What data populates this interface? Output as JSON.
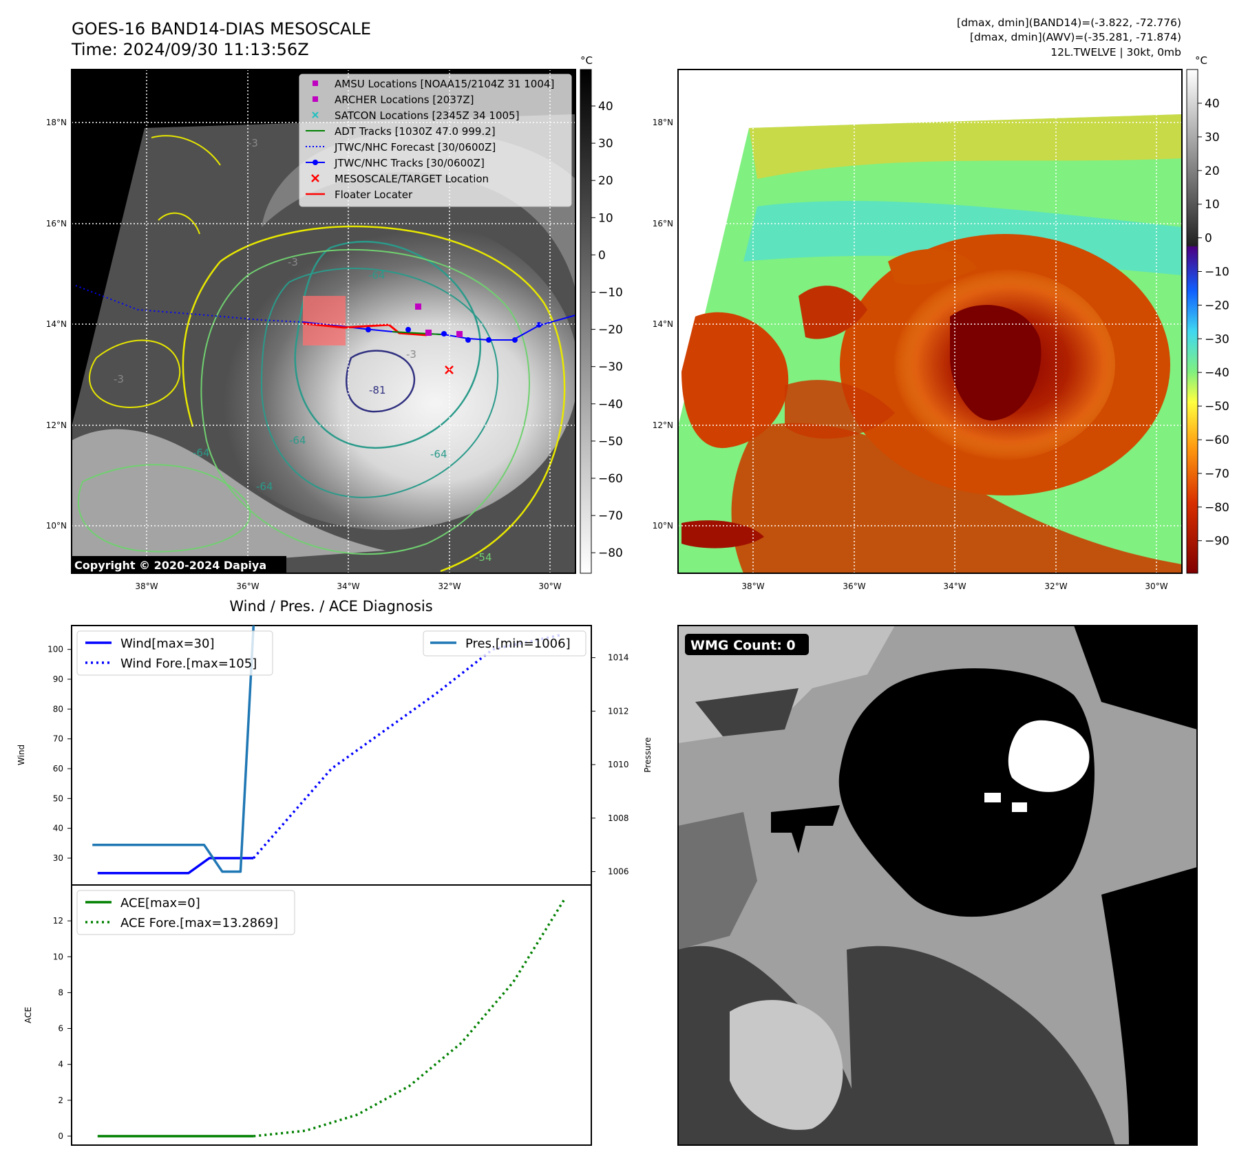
{
  "header": {
    "title": "GOES-16 BAND14-DIAS MESOSCALE",
    "time": "Time: 2024/09/30 11:13:56Z",
    "stats_line1": "[dmax, dmin](BAND14)=(-3.822, -72.776)",
    "stats_line2": "[dmax, dmin](AWV)=(-35.281, -71.874)",
    "stats_line3": "12L.TWELVE | 30kt, 0mb"
  },
  "ir_panel": {
    "copyright": "Copyright © 2020-2024 Dapiya",
    "lat_labels": [
      "18°N",
      "16°N",
      "14°N",
      "12°N",
      "10°N"
    ],
    "lon_labels": [
      "38°W",
      "36°W",
      "34°W",
      "32°W",
      "30°W"
    ],
    "contour_labels": [
      "-3",
      "-64",
      "-81",
      "-64",
      "-64",
      "-64",
      "-54",
      "-3",
      "-3",
      "-3",
      "-64"
    ],
    "legend": [
      {
        "label": "AMSU Locations [NOAA15/2104Z 31 1004]",
        "color": "#c000c0",
        "marker": "square"
      },
      {
        "label": "ARCHER Locations [2037Z]",
        "color": "#c000c0",
        "marker": "square"
      },
      {
        "label": "SATCON Locations [2345Z 34 1005]",
        "color": "#20c0c0",
        "marker": "x"
      },
      {
        "label": "ADT Tracks [1030Z 47.0 999.2]",
        "color": "#008000",
        "marker": "line"
      },
      {
        "label": "JTWC/NHC Forecast [30/0600Z]",
        "color": "#0000ff",
        "marker": "dotted"
      },
      {
        "label": "JTWC/NHC Tracks [30/0600Z]",
        "color": "#0000ff",
        "marker": "line-dot"
      },
      {
        "label": "MESOSCALE/TARGET Location",
        "color": "#ff0000",
        "marker": "x"
      },
      {
        "label": "Floater Locater",
        "color": "#ff0000",
        "marker": "line"
      }
    ],
    "colorbar": {
      "unit": "°C",
      "ticks": [
        "40",
        "30",
        "20",
        "10",
        "0",
        "−10",
        "−20",
        "−30",
        "−40",
        "−50",
        "−60",
        "−70",
        "−80"
      ]
    }
  },
  "awv_panel": {
    "lat_labels": [
      "18°N",
      "16°N",
      "14°N",
      "12°N",
      "10°N"
    ],
    "lon_labels": [
      "38°W",
      "36°W",
      "34°W",
      "32°W",
      "30°W"
    ],
    "colorbar": {
      "unit": "°C",
      "ticks": [
        "40",
        "30",
        "20",
        "10",
        "0",
        "−10",
        "−20",
        "−30",
        "−40",
        "−50",
        "−60",
        "−70",
        "−80",
        "−90"
      ]
    }
  },
  "wmg_panel": {
    "label": "WMG Count: 0"
  },
  "chart_data": [
    {
      "type": "line",
      "title": "Wind / Pres. / ACE Diagnosis",
      "ylabel": "Wind",
      "ylabel_right": "Pressure",
      "ylim": [
        21,
        108
      ],
      "ylim_right": [
        1005.5,
        1015.2
      ],
      "xlim": [
        0,
        100
      ],
      "yticks": [
        30,
        40,
        50,
        60,
        70,
        80,
        90,
        100
      ],
      "yticks_right": [
        1006,
        1008,
        1010,
        1012,
        1014
      ],
      "series": [
        {
          "name": "Wind[max=30]",
          "axis": "left",
          "color": "#0000ff",
          "style": "solid",
          "x": [
            5,
            22.5,
            26.5,
            35
          ],
          "y": [
            25,
            25,
            30,
            30
          ]
        },
        {
          "name": "Wind Fore.[max=105]",
          "axis": "left",
          "color": "#0000ff",
          "style": "dotted",
          "x": [
            35,
            50,
            70,
            81,
            94.5
          ],
          "y": [
            30,
            60,
            85,
            100,
            105
          ]
        },
        {
          "name": "Pres.[min=1006]",
          "axis": "right",
          "color": "#1f77b4",
          "style": "solid",
          "x": [
            4,
            25.5,
            29,
            32.5,
            35
          ],
          "y": [
            1007,
            1007,
            1006,
            1006,
            1015.2
          ]
        }
      ]
    },
    {
      "type": "line",
      "ylabel": "ACE",
      "ylim": [
        -0.5,
        14
      ],
      "xlim": [
        0,
        100
      ],
      "yticks": [
        0,
        2,
        4,
        6,
        8,
        10,
        12
      ],
      "series": [
        {
          "name": "ACE[max=0]",
          "color": "#008000",
          "style": "solid",
          "x": [
            5,
            35
          ],
          "y": [
            0,
            0
          ]
        },
        {
          "name": "ACE Fore.[max=13.2869]",
          "color": "#008000",
          "style": "dotted",
          "x": [
            35,
            45,
            55,
            65,
            75,
            85,
            95
          ],
          "y": [
            0,
            0.3,
            1.2,
            2.8,
            5.2,
            8.6,
            13.2869
          ]
        }
      ]
    }
  ]
}
